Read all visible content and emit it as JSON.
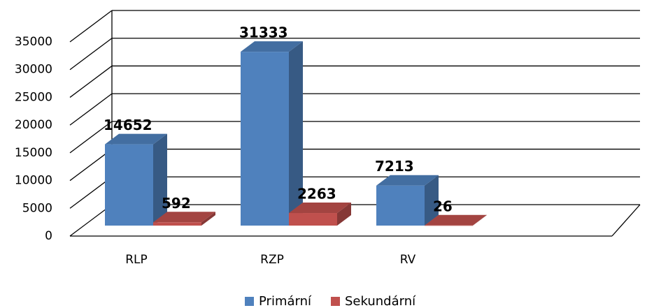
{
  "chart_data": {
    "type": "bar3d",
    "categories": [
      "RLP",
      "RZP",
      "RV"
    ],
    "series": [
      {
        "name": "Primární",
        "color": "#4f81bd",
        "values": [
          14652,
          31333,
          7213
        ]
      },
      {
        "name": "Sekundární",
        "color": "#c0504d",
        "values": [
          592,
          2263,
          26
        ]
      }
    ],
    "ylim": [
      0,
      35000
    ],
    "yticks": [
      0,
      5000,
      10000,
      15000,
      20000,
      25000,
      30000,
      35000
    ],
    "grid": true,
    "legend": "bottom"
  }
}
